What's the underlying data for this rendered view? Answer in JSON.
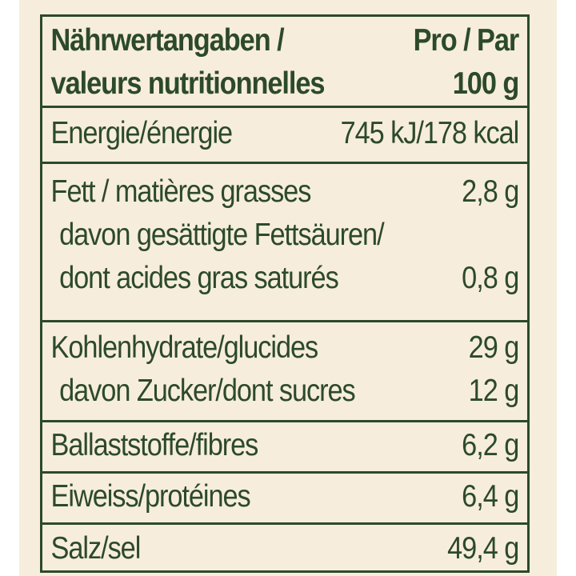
{
  "colors": {
    "panel_background": "#f7eddd",
    "text_and_rules": "#2c4a2a"
  },
  "header": {
    "label_line1": "Nährwertangaben /",
    "label_line2": "valeurs nutritionnelles",
    "value_line1": "Pro / Par",
    "value_line2": "100 g"
  },
  "rows": {
    "energy": {
      "label": "Energie/énergie",
      "value": "745 kJ/178 kcal"
    },
    "fat": {
      "label": "Fett / matières grasses",
      "value": "2,8 g",
      "saturated_label_line1": "davon gesättigte Fettsäuren/",
      "saturated_label_line2": "dont acides gras saturés",
      "saturated_value": "0,8 g"
    },
    "carbohydrates": {
      "label": "Kohlenhydrate/glucides",
      "value": "29 g",
      "sugars_label": "davon Zucker/dont sucres",
      "sugars_value": "12 g"
    },
    "fibre": {
      "label": "Ballaststoffe/fibres",
      "value": "6,2 g"
    },
    "protein": {
      "label": "Eiweiss/protéines",
      "value": "6,4 g"
    },
    "salt": {
      "label": "Salz/sel",
      "value": "49,4 g"
    }
  }
}
